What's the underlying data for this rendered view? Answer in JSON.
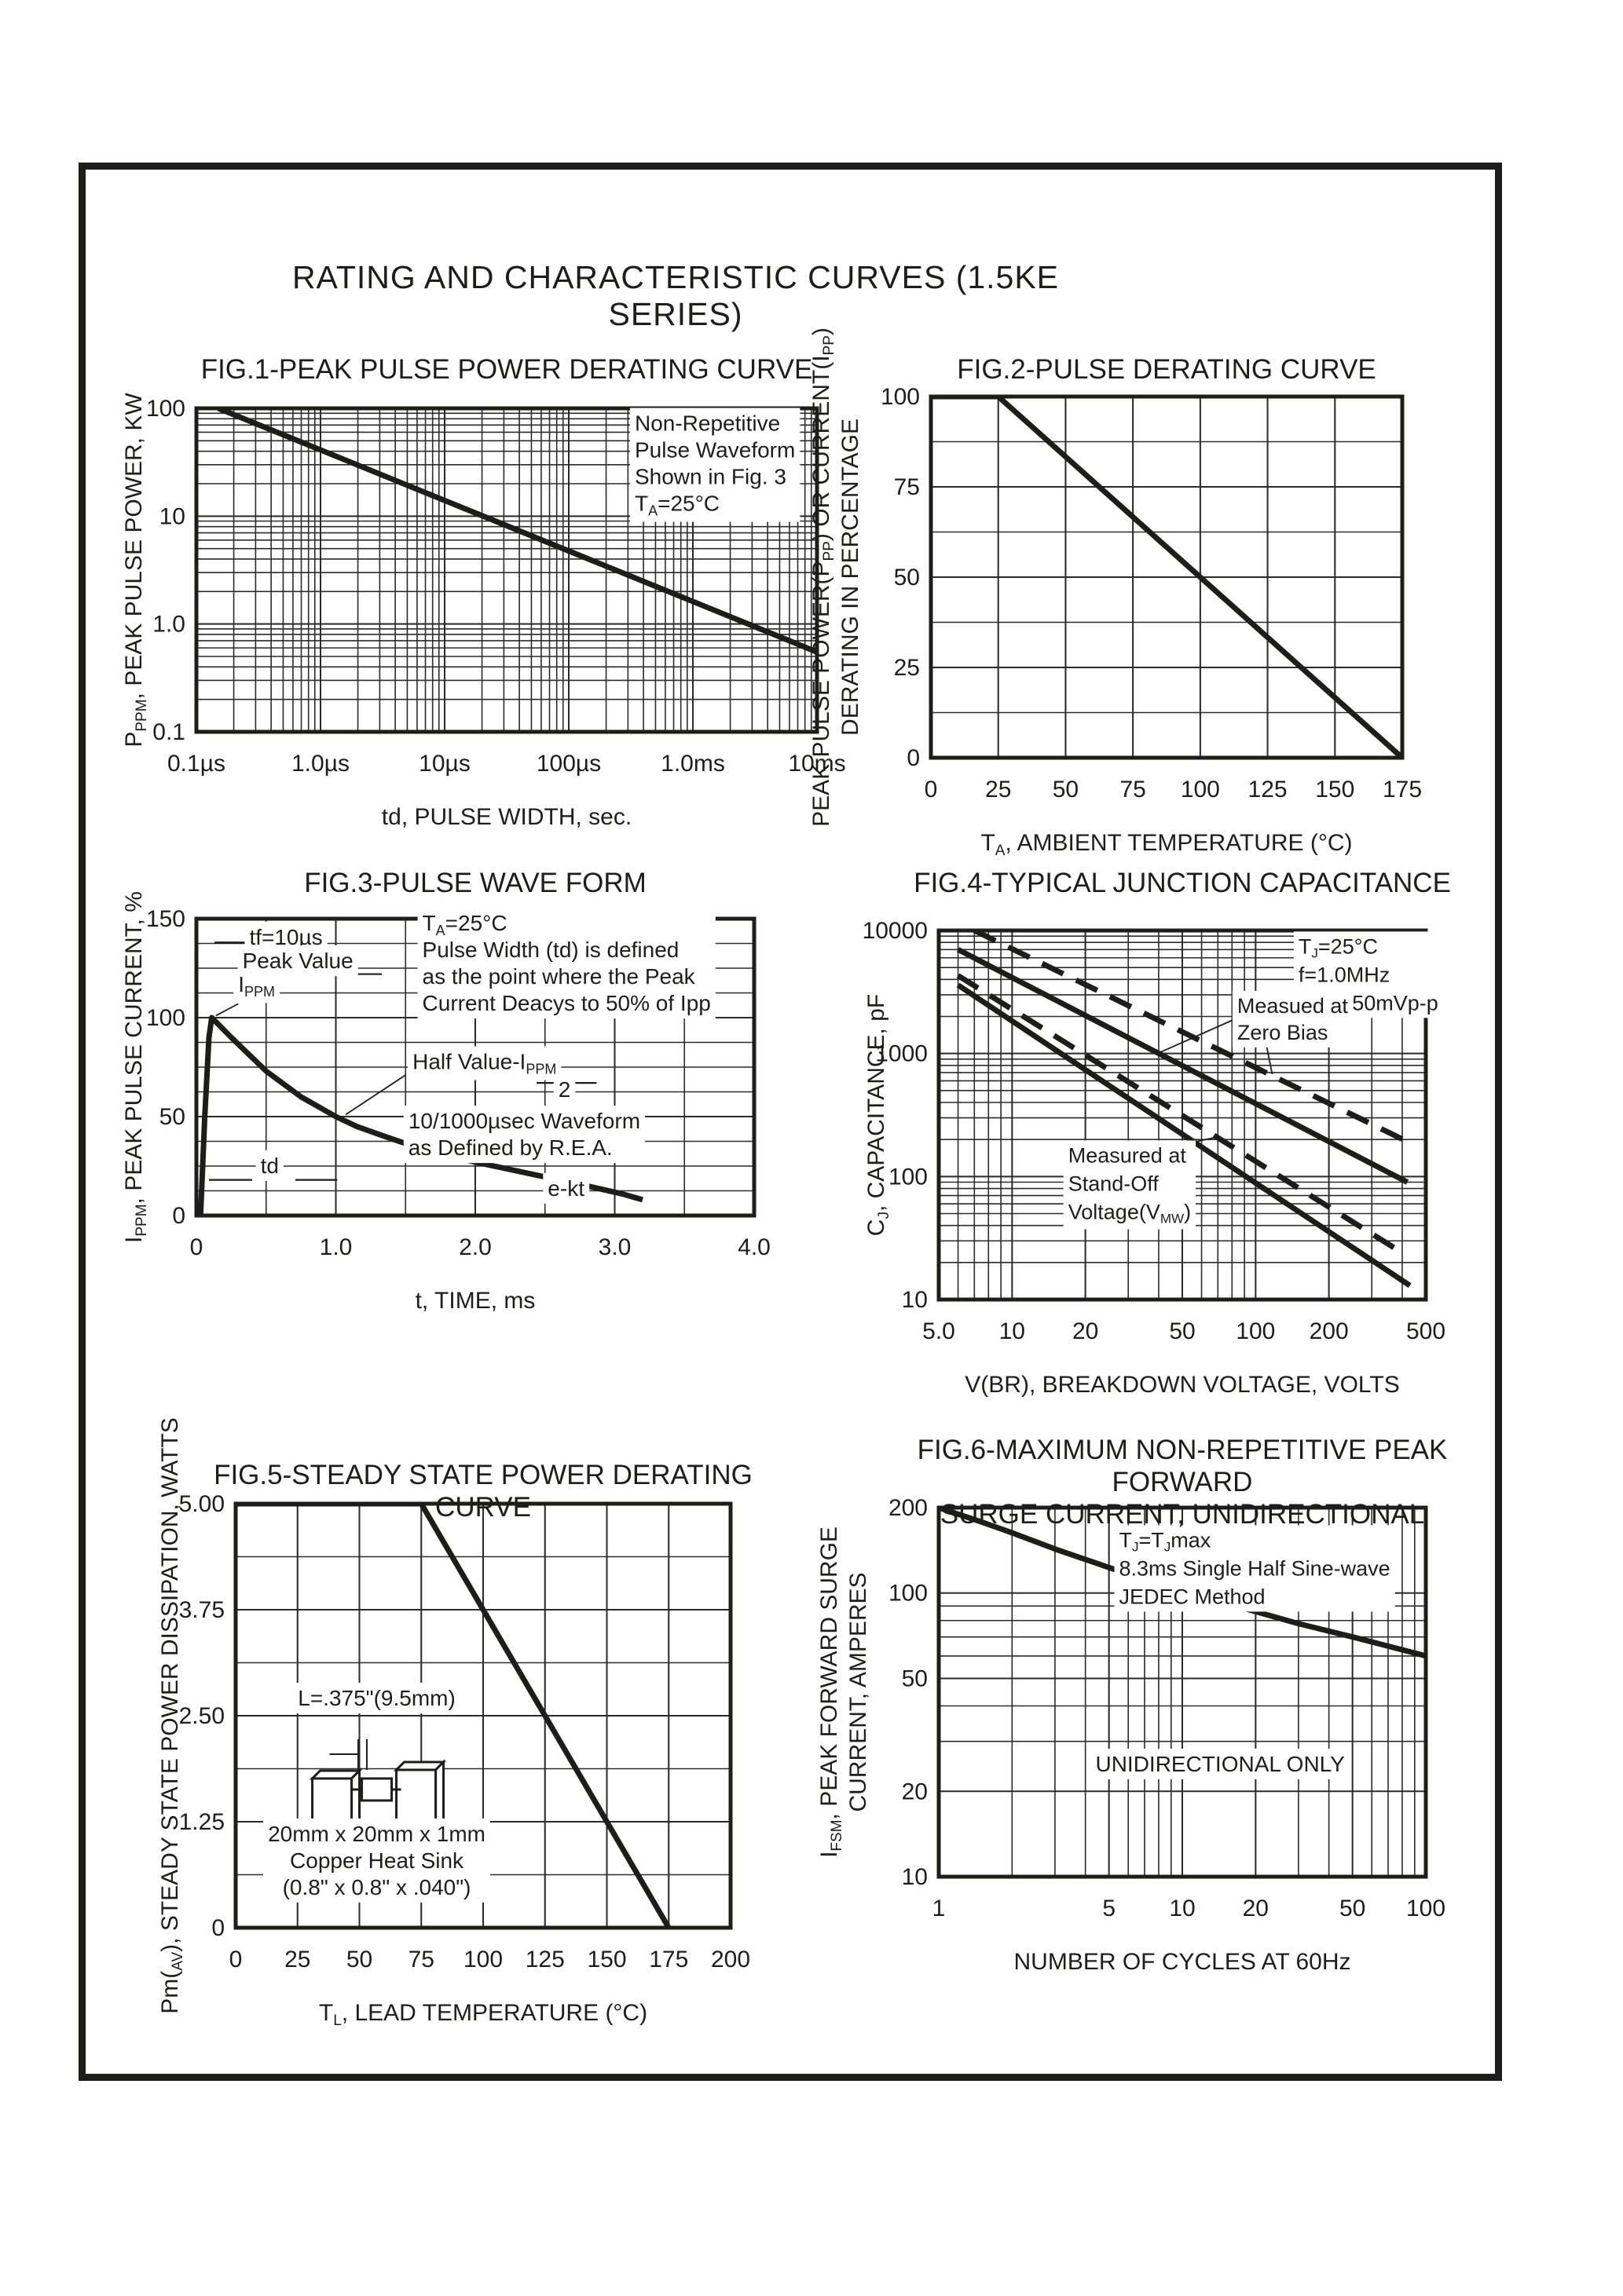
{
  "page": {
    "title": "RATING AND CHARACTERISTIC CURVES (1.5KE SERIES)"
  },
  "chart_data": [
    {
      "id": "fig1",
      "type": "line",
      "title": "FIG.1-PEAK PULSE POWER DERATING CURVE",
      "xlabel": "td, PULSE WIDTH, sec.",
      "ylabel": [
        "P~{PPM}, PEAK PULSE POWER, KW"
      ],
      "x": {
        "scale": "log",
        "min": 1e-07,
        "max": 0.01,
        "ticks": [
          {
            "v": 1e-07,
            "l": "0.1µs"
          },
          {
            "v": 1e-06,
            "l": "1.0µs"
          },
          {
            "v": 1e-05,
            "l": "10µs"
          },
          {
            "v": 0.0001,
            "l": "100µs"
          },
          {
            "v": 0.001,
            "l": "1.0ms"
          },
          {
            "v": 0.01,
            "l": "10ms"
          }
        ]
      },
      "y": {
        "scale": "log",
        "min": 0.1,
        "max": 100,
        "ticks": [
          {
            "v": 0.1,
            "l": "0.1"
          },
          {
            "v": 1,
            "l": "1.0"
          },
          {
            "v": 10,
            "l": "10"
          },
          {
            "v": 100,
            "l": "100"
          }
        ]
      },
      "series": [
        {
          "name": "peak-pulse-power",
          "dash": false,
          "pts": [
            [
              1.5e-07,
              100
            ],
            [
              0.01,
              0.55
            ]
          ]
        }
      ],
      "annotations": [
        {
          "x": 0.00034,
          "y": 62,
          "align": "left",
          "bg": true,
          "lines": [
            "Non-Repetitive",
            "Pulse Waveform",
            "Shown in Fig. 3",
            "T~{A}=25°C"
          ]
        }
      ]
    },
    {
      "id": "fig2",
      "type": "line",
      "title": "FIG.2-PULSE DERATING CURVE",
      "xlabel": "T~{A}, AMBIENT TEMPERATURE (°C)",
      "ylabel": [
        "PEAK PULSE POWER(P~{PP}) OR CURRENT(I~{PP})",
        "DERATING IN PERCENTAGE"
      ],
      "x": {
        "scale": "lin",
        "min": 0,
        "max": 175,
        "grid": 25,
        "ticks": [
          {
            "v": 0,
            "l": "0"
          },
          {
            "v": 25,
            "l": "25"
          },
          {
            "v": 50,
            "l": "50"
          },
          {
            "v": 75,
            "l": "75"
          },
          {
            "v": 100,
            "l": "100"
          },
          {
            "v": 125,
            "l": "125"
          },
          {
            "v": 150,
            "l": "150"
          },
          {
            "v": 175,
            "l": "175"
          }
        ]
      },
      "y": {
        "scale": "lin",
        "min": 0,
        "max": 100,
        "grid": 12.5,
        "ticks": [
          {
            "v": 0,
            "l": "0"
          },
          {
            "v": 25,
            "l": "25"
          },
          {
            "v": 50,
            "l": "50"
          },
          {
            "v": 75,
            "l": "75"
          },
          {
            "v": 100,
            "l": "100"
          }
        ]
      },
      "series": [
        {
          "name": "derating-percentage",
          "pts": [
            [
              0,
              100
            ],
            [
              25,
              100
            ],
            [
              175,
              0
            ]
          ]
        }
      ],
      "annotations": []
    },
    {
      "id": "fig3",
      "type": "line",
      "title": "FIG.3-PULSE WAVE FORM",
      "xlabel": "t, TIME, ms",
      "ylabel": [
        "I~{PPM}, PEAK PULSE CURRENT, %"
      ],
      "x": {
        "scale": "lin",
        "min": 0,
        "max": 4,
        "grid": 0.5,
        "ticks": [
          {
            "v": 0,
            "l": "0"
          },
          {
            "v": 1,
            "l": "1.0"
          },
          {
            "v": 2,
            "l": "2.0"
          },
          {
            "v": 3,
            "l": "3.0"
          },
          {
            "v": 4,
            "l": "4.0"
          }
        ]
      },
      "y": {
        "scale": "lin",
        "min": 0,
        "max": 150,
        "grid": 12.5,
        "ticks": [
          {
            "v": 0,
            "l": "0"
          },
          {
            "v": 50,
            "l": "50"
          },
          {
            "v": 100,
            "l": "100"
          },
          {
            "v": 150,
            "l": "150"
          }
        ]
      },
      "series": [
        {
          "name": "pulse-waveform-10-1000us",
          "pts": [
            [
              0.03,
              0
            ],
            [
              0.06,
              50
            ],
            [
              0.09,
              90
            ],
            [
              0.11,
              100
            ],
            [
              0.25,
              90
            ],
            [
              0.5,
              73
            ],
            [
              0.75,
              60
            ],
            [
              1.0,
              50
            ],
            [
              1.15,
              45
            ],
            [
              1.35,
              40
            ],
            [
              1.6,
              34
            ],
            [
              2.0,
              27
            ],
            [
              2.4,
              21
            ],
            [
              2.8,
              15
            ],
            [
              3.05,
              11
            ],
            [
              3.2,
              8
            ]
          ]
        }
      ],
      "annotations": [
        {
          "x": 0.38,
          "y": 137,
          "align": "left",
          "bg": true,
          "lines": [
            "tf=10µs"
          ]
        },
        {
          "x": 0.33,
          "y": 125,
          "align": "left",
          "bg": true,
          "lines": [
            "Peak Value"
          ]
        },
        {
          "x": 0.3,
          "y": 113,
          "align": "left",
          "bg": true,
          "lines": [
            "I~{PPM}"
          ]
        },
        {
          "x": 1.62,
          "y": 144,
          "align": "left",
          "bg": true,
          "lines": [
            "T~{A}=25°C",
            "Pulse Width (td) is defined",
            "as the point where the Peak",
            "Current Deacys to 50% of Ipp"
          ]
        },
        {
          "x": 1.55,
          "y": 74,
          "align": "left",
          "bg": true,
          "lines": [
            "Half Value-I~{PPM}"
          ]
        },
        {
          "x": 2.64,
          "y": 60,
          "align": "middle",
          "bg": true,
          "lines": [
            "2"
          ]
        },
        {
          "x": 1.52,
          "y": 44,
          "align": "left",
          "bg": true,
          "lines": [
            "10/1000µsec Waveform",
            "as Defined by R.E.A."
          ]
        },
        {
          "x": 0.46,
          "y": 21.5,
          "align": "left",
          "bg": true,
          "lines": [
            "td"
          ]
        },
        {
          "x": 2.52,
          "y": 10,
          "align": "left",
          "bg": true,
          "lines": [
            "e-kt"
          ]
        }
      ],
      "marks": [
        [
          0.13,
          138,
          0.35,
          138
        ],
        [
          1.04,
          122,
          1.33,
          122
        ],
        [
          0.09,
          18,
          0.4,
          18
        ],
        [
          0.71,
          18,
          1.01,
          18
        ],
        [
          2.44,
          67,
          2.87,
          67
        ]
      ],
      "leaders": [
        [
          0.3,
          107,
          0.14,
          101
        ],
        [
          1.5,
          71,
          1.07,
          51
        ]
      ]
    },
    {
      "id": "fig4",
      "type": "line",
      "title": "FIG.4-TYPICAL JUNCTION CAPACITANCE",
      "xlabel": "V(BR), BREAKDOWN VOLTAGE, VOLTS",
      "ylabel": [
        "C~{J}, CAPACITANCE, pF"
      ],
      "x": {
        "scale": "log",
        "min": 5,
        "max": 500,
        "ticks": [
          {
            "v": 5,
            "l": "5.0"
          },
          {
            "v": 10,
            "l": "10"
          },
          {
            "v": 20,
            "l": "20"
          },
          {
            "v": 50,
            "l": "50"
          },
          {
            "v": 100,
            "l": "100"
          },
          {
            "v": 200,
            "l": "200"
          },
          {
            "v": 500,
            "l": "500"
          }
        ]
      },
      "y": {
        "scale": "log",
        "min": 10,
        "max": 10000,
        "ticks": [
          {
            "v": 10,
            "l": "10"
          },
          {
            "v": 100,
            "l": "100"
          },
          {
            "v": 1000,
            "l": "1000"
          },
          {
            "v": 10000,
            "l": "10000"
          }
        ]
      },
      "series": [
        {
          "name": "zero-bias-dashed",
          "dash": true,
          "pts": [
            [
              7,
              10000
            ],
            [
              450,
              180
            ]
          ]
        },
        {
          "name": "zero-bias-solid",
          "dash": false,
          "pts": [
            [
              6,
              7000
            ],
            [
              420,
              90
            ]
          ]
        },
        {
          "name": "standoff-dashed",
          "dash": true,
          "pts": [
            [
              6,
              4300
            ],
            [
              400,
              24
            ]
          ]
        },
        {
          "name": "standoff-solid",
          "dash": false,
          "pts": [
            [
              6,
              3600
            ],
            [
              430,
              13
            ]
          ]
        }
      ],
      "annotations": [
        {
          "x": 150,
          "y": 6500,
          "align": "left",
          "bg": true,
          "size": 27,
          "lh": 36,
          "lines": [
            "T~{J}=25°C",
            "f=1.0MHz",
            "Vsig=50mVp-p"
          ]
        },
        {
          "x": 84,
          "y": 2140,
          "align": "left",
          "bg": true,
          "size": 27,
          "lh": 34,
          "lines": [
            "Measued at",
            "Zero Bias"
          ]
        },
        {
          "x": 17,
          "y": 130,
          "align": "left",
          "bg": true,
          "size": 27,
          "lh": 36,
          "lines": [
            "Measured at",
            "Stand-Off",
            "Voltage(V~{MW})"
          ]
        }
      ],
      "leaders": [
        [
          82,
          1900,
          40,
          1010
        ],
        [
          108,
          1500,
          117,
          680
        ],
        [
          40,
          165,
          70,
          210
        ]
      ]
    },
    {
      "id": "fig5",
      "type": "line",
      "title": "FIG.5-STEADY STATE POWER DERATING CURVE",
      "xlabel": "T~{L}, LEAD TEMPERATURE (°C)",
      "ylabel": [
        "Pm(~{AV}), STEADY STATE POWER DISSIPATION, WATTS"
      ],
      "x": {
        "scale": "lin",
        "min": 0,
        "max": 200,
        "grid": 25,
        "ticks": [
          {
            "v": 0,
            "l": "0"
          },
          {
            "v": 25,
            "l": "25"
          },
          {
            "v": 50,
            "l": "50"
          },
          {
            "v": 75,
            "l": "75"
          },
          {
            "v": 100,
            "l": "100"
          },
          {
            "v": 125,
            "l": "125"
          },
          {
            "v": 150,
            "l": "150"
          },
          {
            "v": 175,
            "l": "175"
          },
          {
            "v": 200,
            "l": "200"
          }
        ]
      },
      "y": {
        "scale": "lin",
        "min": 0,
        "max": 5,
        "grid": 0.625,
        "ticks": [
          {
            "v": 0,
            "l": "0"
          },
          {
            "v": 1.25,
            "l": "1.25"
          },
          {
            "v": 2.5,
            "l": "2.50"
          },
          {
            "v": 3.75,
            "l": "3.75"
          },
          {
            "v": 5,
            "l": "5.00"
          }
        ]
      },
      "series": [
        {
          "name": "steady-state-power",
          "pts": [
            [
              0,
              5
            ],
            [
              75,
              5
            ],
            [
              175,
              0
            ]
          ]
        }
      ],
      "annotations": [
        {
          "x": 57,
          "y": 2.62,
          "align": "middle",
          "bg": true,
          "lines": [
            "L=.375\"(9.5mm)"
          ]
        },
        {
          "x": 57,
          "y": 1.02,
          "align": "middle",
          "bg": true,
          "lines": [
            "20mm x 20mm x 1mm",
            "Copper Heat Sink",
            "(0.8\" x 0.8\" x .040\")"
          ]
        }
      ],
      "marks": [],
      "heatsink": {
        "x": 57,
        "y": 1.63
      }
    },
    {
      "id": "fig6",
      "type": "line",
      "title": "FIG.6-MAXIMUM NON-REPETITIVE PEAK FORWARD\nSURGE CURRENT, UNIDIRECTIONAL",
      "xlabel": "NUMBER OF CYCLES AT 60Hz",
      "ylabel": [
        "I~{FSM}, PEAK FORWARD SURGE",
        "CURRENT, AMPERES"
      ],
      "x": {
        "scale": "log",
        "min": 1,
        "max": 100,
        "ticks": [
          {
            "v": 1,
            "l": "1"
          },
          {
            "v": 5,
            "l": "5"
          },
          {
            "v": 10,
            "l": "10"
          },
          {
            "v": 20,
            "l": "20"
          },
          {
            "v": 50,
            "l": "50"
          },
          {
            "v": 100,
            "l": "100"
          }
        ]
      },
      "y": {
        "scale": "log",
        "min": 10,
        "max": 200,
        "ticks": [
          {
            "v": 10,
            "l": "10"
          },
          {
            "v": 20,
            "l": "20"
          },
          {
            "v": 50,
            "l": "50"
          },
          {
            "v": 100,
            "l": "100"
          },
          {
            "v": 200,
            "l": "200"
          }
        ]
      },
      "series": [
        {
          "name": "surge-current",
          "pts": [
            [
              1,
              200
            ],
            [
              1.5,
              178
            ],
            [
              2,
              163
            ],
            [
              3,
              143
            ],
            [
              5,
              123
            ],
            [
              7,
              112
            ],
            [
              10,
              101
            ],
            [
              15,
              92
            ],
            [
              20,
              86
            ],
            [
              30,
              78
            ],
            [
              50,
              70
            ],
            [
              70,
              65
            ],
            [
              100,
              60
            ]
          ]
        }
      ],
      "annotations": [
        {
          "x": 5.5,
          "y": 145,
          "align": "left",
          "bg": true,
          "size": 27,
          "lh": 36,
          "lines": [
            "T~{J}=T~{J}max",
            "8.3ms Single Half Sine-wave",
            "JEDEC Method"
          ]
        },
        {
          "x": 4.4,
          "y": 23.5,
          "align": "left",
          "bg": true,
          "lines": [
            "UNIDIRECTIONAL ONLY"
          ]
        }
      ]
    }
  ]
}
